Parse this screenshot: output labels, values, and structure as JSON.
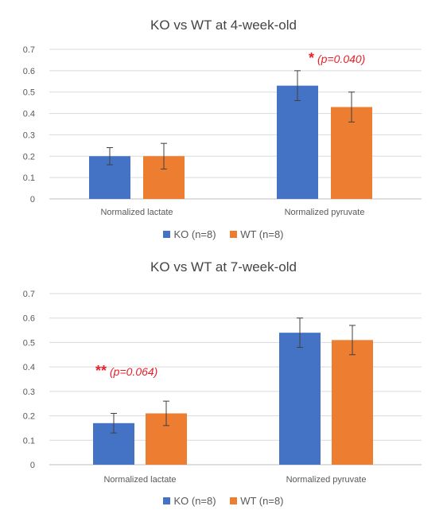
{
  "colors": {
    "ko": "#4472c4",
    "wt": "#ed7d31",
    "grid": "#d9d9d9",
    "axis_text": "#595959",
    "annotation": "#e8202a"
  },
  "chart_data": [
    {
      "type": "bar",
      "title": "KO vs WT at 4-week-old",
      "categories": [
        "Normalized lactate",
        "Normalized pyruvate"
      ],
      "series": [
        {
          "name": "KO (n=8)",
          "values": [
            0.2,
            0.53
          ],
          "errors": [
            0.04,
            0.07
          ]
        },
        {
          "name": "WT (n=8)",
          "values": [
            0.2,
            0.43
          ],
          "errors": [
            0.06,
            0.07
          ]
        }
      ],
      "ylim": [
        0,
        0.7
      ],
      "yticks": [
        "0",
        "0.1",
        "0.2",
        "0.3",
        "0.4",
        "0.5",
        "0.6",
        "0.7"
      ],
      "grid": true,
      "legend_position": "bottom",
      "annotation": {
        "stars": "*",
        "text": "(p=0.040)",
        "category": "Normalized pyruvate"
      }
    },
    {
      "type": "bar",
      "title": "KO vs WT at 7-week-old",
      "categories": [
        "Normalized lactate",
        "Normalized pyruvate"
      ],
      "series": [
        {
          "name": "KO (n=8)",
          "values": [
            0.17,
            0.54
          ],
          "errors": [
            0.04,
            0.06
          ]
        },
        {
          "name": "WT (n=8)",
          "values": [
            0.21,
            0.51
          ],
          "errors": [
            0.05,
            0.06
          ]
        }
      ],
      "ylim": [
        0,
        0.7
      ],
      "yticks": [
        "0",
        "0.1",
        "0.2",
        "0.3",
        "0.4",
        "0.5",
        "0.6",
        "0.7"
      ],
      "grid": true,
      "legend_position": "bottom",
      "annotation": {
        "stars": "**",
        "text": "(p=0.064)",
        "category": "Normalized lactate"
      }
    }
  ]
}
